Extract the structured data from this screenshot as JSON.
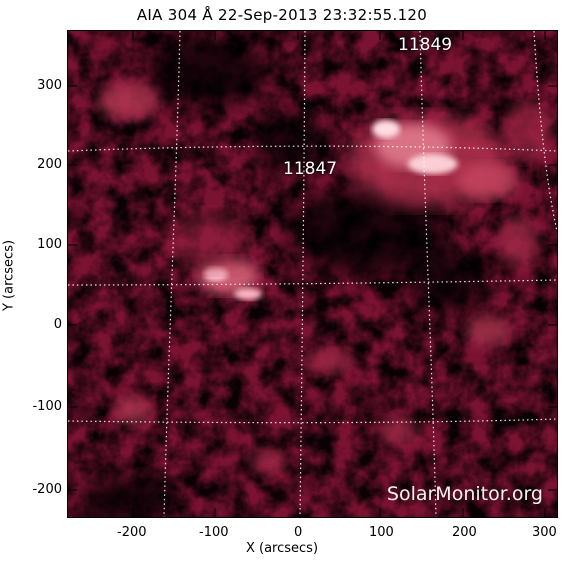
{
  "title": "AIA 304 Å 22-Sep-2013 23:32:55.120",
  "active_regions": [
    {
      "number": "11849"
    },
    {
      "number": "11847"
    }
  ],
  "watermark": "SolarMonitor.org",
  "axes": {
    "xlabel": "X (arcsecs)",
    "ylabel": "Y (arcsecs)",
    "x_ticks": [
      "-200",
      "-100",
      "0",
      "100",
      "200",
      "300"
    ],
    "y_ticks": [
      "300",
      "200",
      "100",
      "0",
      "-100",
      "-200"
    ],
    "x_range": [
      -290,
      320
    ],
    "y_range": [
      -240,
      370
    ]
  },
  "colors": {
    "background": "#000000",
    "chromosphere": "#8c1436",
    "bright": "#ffd6dc",
    "grid": "#ffffff"
  }
}
